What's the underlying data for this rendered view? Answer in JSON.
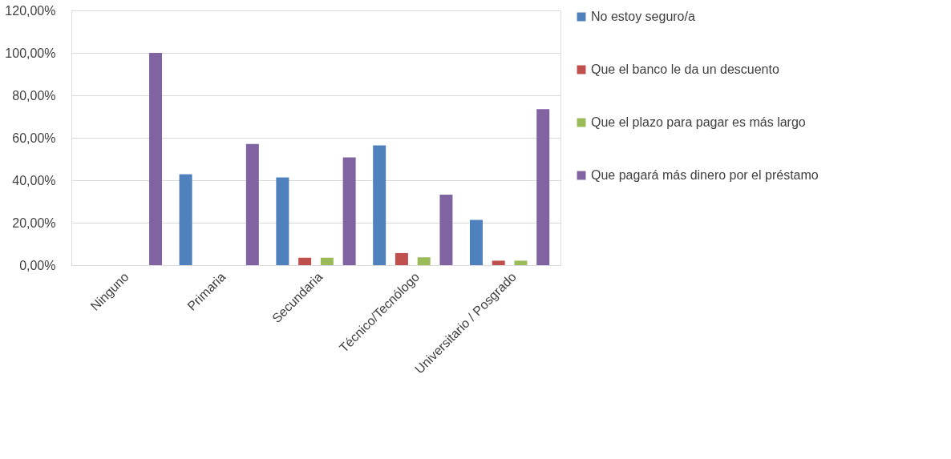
{
  "chart_data": {
    "type": "bar",
    "categories": [
      "Ninguno",
      "Primaria",
      "Secundaria",
      "Técnico/Tecnólogo",
      "Universitario / Posgrado"
    ],
    "series": [
      {
        "name": "No estoy seguro/a",
        "color": "#4f81bd",
        "values": [
          0,
          42.8,
          41.3,
          56.4,
          21.3
        ]
      },
      {
        "name": "Que el banco le da un descuento",
        "color": "#c0504d",
        "values": [
          0,
          0,
          3.5,
          5.7,
          2.1
        ]
      },
      {
        "name": "Que el plazo para pagar es más largo",
        "color": "#9bbb59",
        "values": [
          0,
          0,
          3.5,
          3.7,
          2.1
        ]
      },
      {
        "name": "Que pagará más dinero por el préstamo",
        "color": "#8064a2",
        "values": [
          100,
          57.1,
          50.8,
          33.2,
          73.5
        ]
      }
    ],
    "ylim": [
      0,
      120
    ],
    "yticks": [
      {
        "value": 0,
        "label": "0,00%"
      },
      {
        "value": 20,
        "label": "20,00%"
      },
      {
        "value": 40,
        "label": "40,00%"
      },
      {
        "value": 60,
        "label": "60,00%"
      },
      {
        "value": 80,
        "label": "80,00%"
      },
      {
        "value": 100,
        "label": "100,00%"
      },
      {
        "value": 120,
        "label": "120,00%"
      }
    ],
    "grid": "y",
    "legend": "right"
  }
}
